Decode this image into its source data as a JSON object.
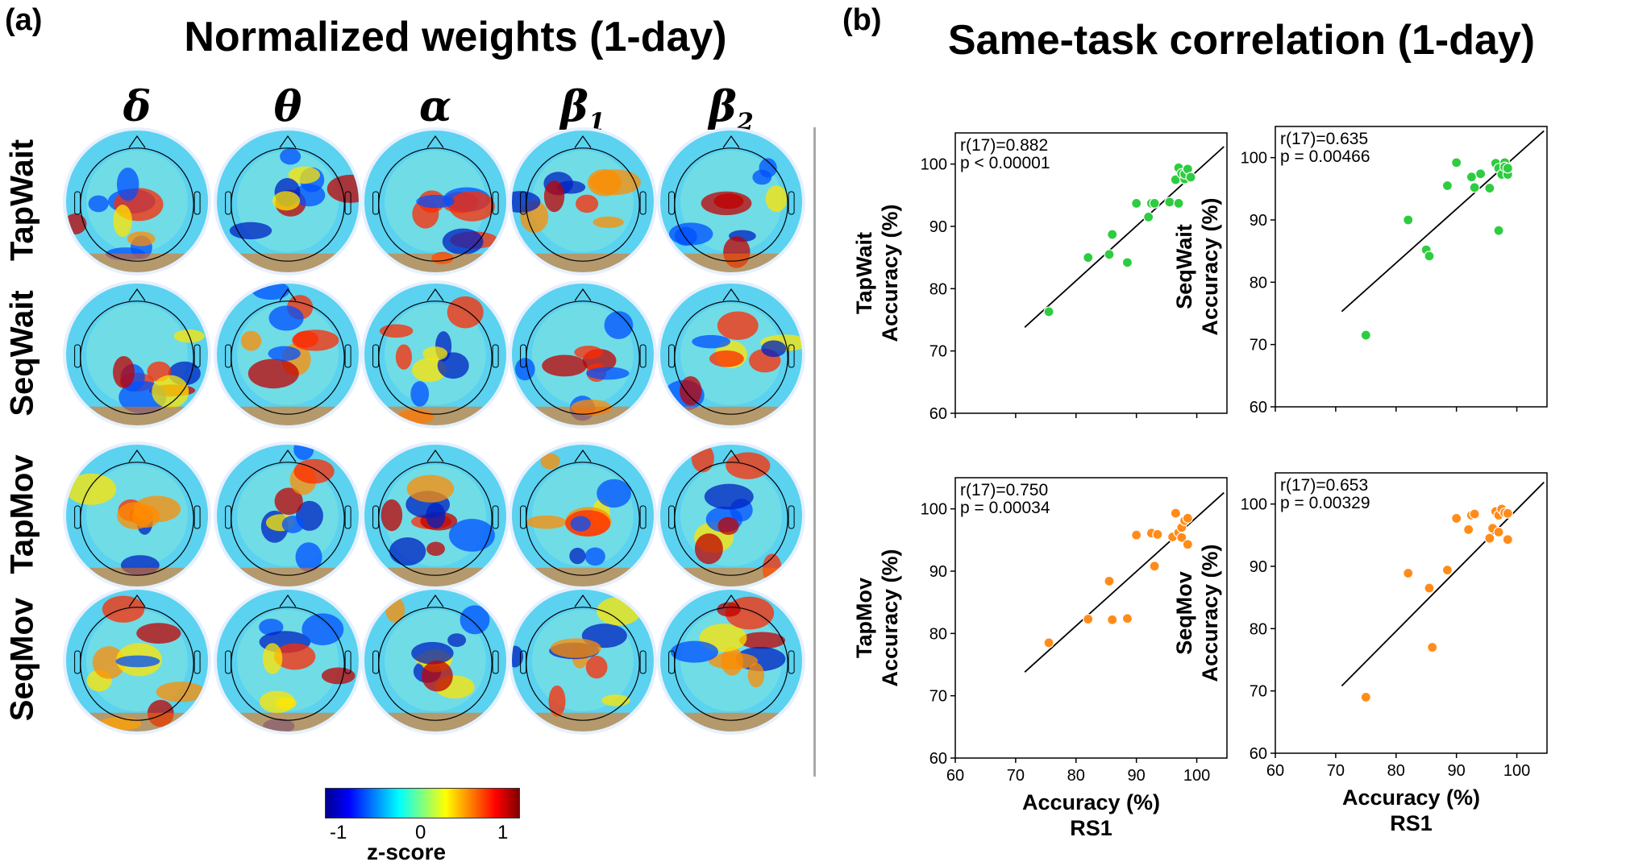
{
  "panel_a": {
    "letter": "(a)",
    "title": "Normalized weights (1-day)",
    "bands": [
      "δ",
      "θ",
      "α",
      "β",
      "β"
    ],
    "band_subs": [
      "",
      "",
      "",
      "1",
      "2"
    ],
    "rows": [
      "TapWait",
      "SeqWait",
      "TapMov",
      "SeqMov"
    ],
    "colorbar": {
      "ticks": [
        "-1",
        "0",
        "1"
      ],
      "label": "z-score",
      "colors": [
        "#00008f",
        "#0000ff",
        "#00ffff",
        "#ffff00",
        "#ff0000",
        "#800000"
      ]
    }
  },
  "panel_b": {
    "letter": "(b)",
    "title": "Same-task correlation (1-day)",
    "xlabel": "Accuracy (%)",
    "xlabel2": "RS1",
    "ylabel": "Accuracy (%)"
  },
  "chart_data": [
    {
      "type": "scatter",
      "task": "TapWait",
      "color": "#2ecc40",
      "annotation": [
        "r(17)=0.882",
        "p < 0.00001"
      ],
      "xlim": [
        60,
        105
      ],
      "ylim": [
        60,
        105
      ],
      "xticks": [
        60,
        70,
        80,
        90,
        100
      ],
      "yticks": [
        60,
        70,
        80,
        90,
        100
      ],
      "x": [
        75.5,
        82,
        85.5,
        86,
        88.5,
        90,
        92,
        92.5,
        93,
        95.5,
        96.5,
        97,
        97,
        97.5,
        98,
        98,
        98.5,
        99
      ],
      "y": [
        76.3,
        85,
        85.5,
        88.7,
        84.2,
        93.7,
        91.5,
        93.7,
        93.7,
        93.9,
        97.5,
        99.4,
        93.7,
        98.5,
        97.6,
        98.4,
        99.2,
        97.9
      ],
      "fit": [
        [
          71.5,
          73.8
        ],
        [
          104.5,
          102.8
        ]
      ]
    },
    {
      "type": "scatter",
      "task": "SeqWait",
      "color": "#2ecc40",
      "annotation": [
        "r(17)=0.635",
        "p = 0.00466"
      ],
      "xlim": [
        60,
        105
      ],
      "ylim": [
        60,
        105
      ],
      "xticks": [
        60,
        70,
        80,
        90,
        100
      ],
      "yticks": [
        60,
        70,
        80,
        90,
        100
      ],
      "x": [
        75,
        82,
        85,
        85.5,
        88.5,
        90,
        92.5,
        93,
        94,
        95.5,
        96.5,
        97,
        97,
        97.5,
        98,
        98,
        98.5,
        98.5
      ],
      "y": [
        71.5,
        90,
        85.2,
        84.2,
        95.5,
        99.2,
        96.9,
        95.2,
        97.4,
        95.1,
        99.1,
        98.3,
        88.3,
        97.3,
        99.2,
        98.5,
        97.3,
        98.3
      ],
      "fit": [
        [
          71,
          75.3
        ],
        [
          104.5,
          104.3
        ]
      ]
    },
    {
      "type": "scatter",
      "task": "TapMov",
      "color": "#ff8c1a",
      "annotation": [
        "r(17)=0.750",
        "p = 0.00034"
      ],
      "xlim": [
        60,
        105
      ],
      "ylim": [
        60,
        105
      ],
      "xticks": [
        60,
        70,
        80,
        90,
        100
      ],
      "yticks": [
        60,
        70,
        80,
        90,
        100
      ],
      "x": [
        75.5,
        82,
        85.5,
        86,
        88.5,
        90,
        92.5,
        93,
        93.5,
        96,
        96.5,
        97,
        97.5,
        97.5,
        98,
        98.5,
        98.5
      ],
      "y": [
        78.5,
        82.3,
        88.4,
        82.2,
        82.4,
        95.8,
        96.1,
        90.8,
        95.9,
        95.5,
        99.3,
        96.2,
        95.4,
        97,
        98.1,
        98.5,
        94.3
      ],
      "fit": [
        [
          71.5,
          73.8
        ],
        [
          104.5,
          102.6
        ]
      ]
    },
    {
      "type": "scatter",
      "task": "SeqMov",
      "color": "#ff8c1a",
      "annotation": [
        "r(17)=0.653",
        "p = 0.00329"
      ],
      "xlim": [
        60,
        105
      ],
      "ylim": [
        60,
        105
      ],
      "xticks": [
        60,
        70,
        80,
        90,
        100
      ],
      "yticks": [
        60,
        70,
        80,
        90,
        100
      ],
      "x": [
        75,
        82,
        85.5,
        86,
        88.5,
        90,
        92,
        92.5,
        93,
        95.5,
        96,
        96.5,
        97,
        97,
        97.5,
        98,
        98.5,
        98.5
      ],
      "y": [
        69,
        88.9,
        86.5,
        77,
        89.4,
        97.7,
        95.9,
        98.2,
        98.4,
        94.5,
        96.1,
        98.8,
        98.2,
        95.5,
        99.2,
        98.6,
        98.5,
        94.3
      ],
      "fit": [
        [
          71,
          70.8
        ],
        [
          104.5,
          103.5
        ]
      ]
    }
  ]
}
